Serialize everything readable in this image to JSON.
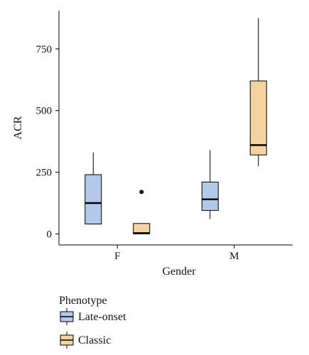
{
  "chart_data": {
    "type": "boxplot",
    "title": "",
    "xlabel": "Gender",
    "ylabel": "ACR",
    "categories": [
      "F",
      "M"
    ],
    "ylim": [
      -45,
      905
    ],
    "yticks": [
      0,
      250,
      500,
      750
    ],
    "grid": false,
    "legend": {
      "title": "Phenotype",
      "placement": "bottom-left"
    },
    "series": [
      {
        "name": "Late-onset",
        "color": "#b3c9ea",
        "boxes": [
          {
            "category": "F",
            "min": 40,
            "q1": 40,
            "median": 125,
            "q3": 240,
            "max": 330,
            "outliers": []
          },
          {
            "category": "M",
            "min": 60,
            "q1": 95,
            "median": 140,
            "q3": 210,
            "max": 340,
            "outliers": []
          }
        ]
      },
      {
        "name": "Classic",
        "color": "#f3d4a0",
        "boxes": [
          {
            "category": "F",
            "min": 0,
            "q1": 0,
            "median": 3,
            "q3": 42,
            "max": 42,
            "outliers": [
              170
            ]
          },
          {
            "category": "M",
            "min": 275,
            "q1": 320,
            "median": 360,
            "q3": 620,
            "max": 875,
            "outliers": []
          }
        ]
      }
    ]
  }
}
